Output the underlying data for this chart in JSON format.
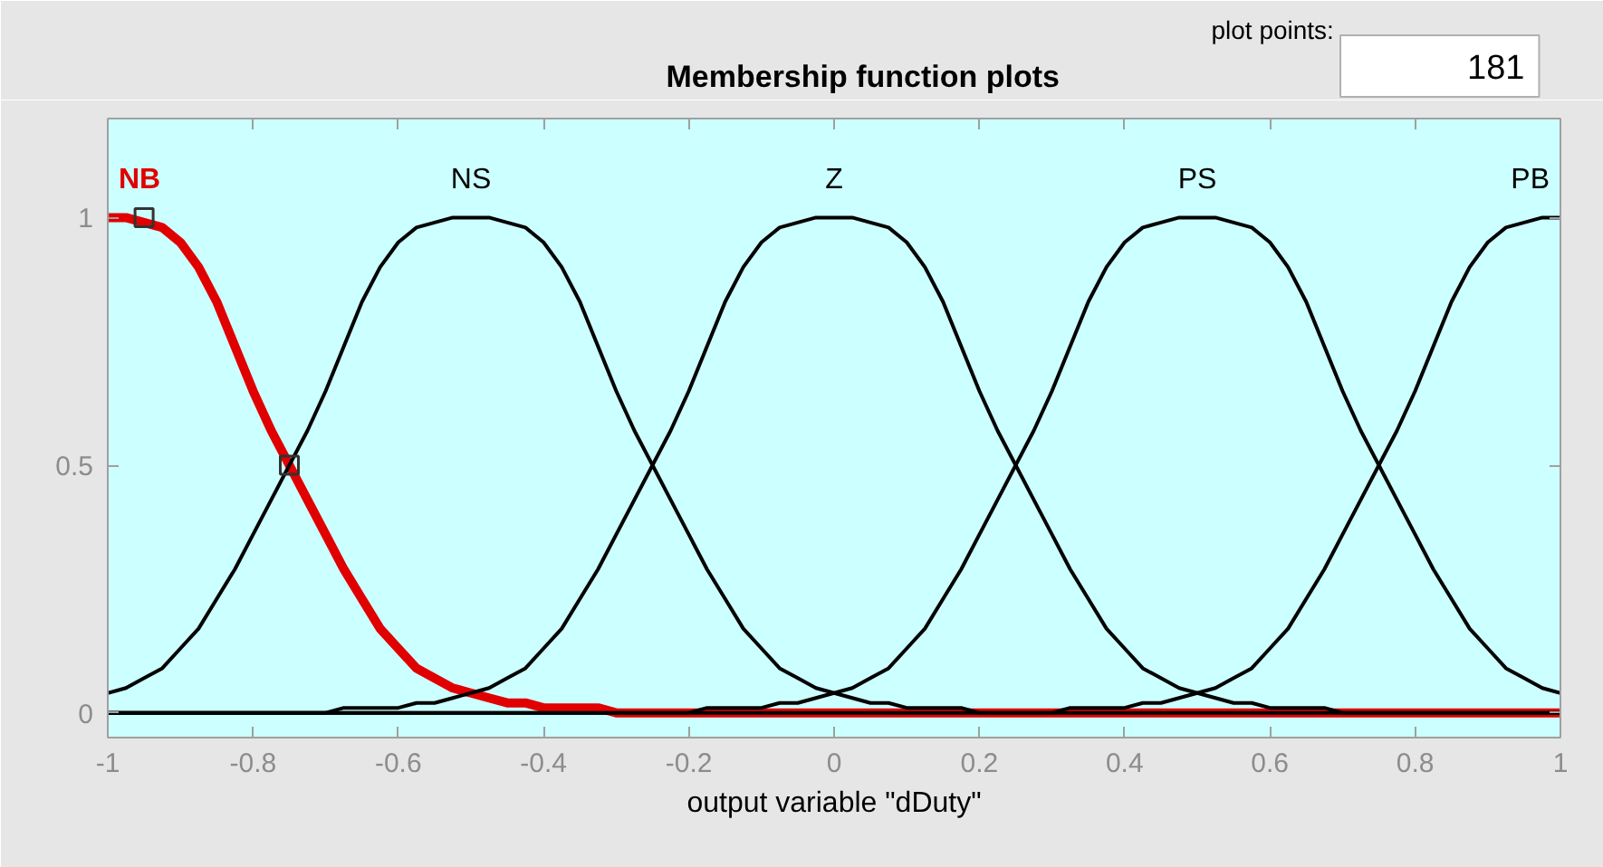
{
  "chart_data": {
    "type": "line",
    "title": "Membership function plots",
    "xlabel": "output variable \"dDuty\"",
    "annotations": [
      "plot points:",
      "181"
    ],
    "x": [
      -1,
      -0.975,
      -0.95,
      -0.925,
      -0.9,
      -0.875,
      -0.85,
      -0.825,
      -0.8,
      -0.775,
      -0.75,
      -0.725,
      -0.7,
      -0.675,
      -0.65,
      -0.625,
      -0.6,
      -0.575,
      -0.55,
      -0.525,
      -0.5,
      -0.475,
      -0.45,
      -0.425,
      -0.4,
      -0.375,
      -0.35,
      -0.325,
      -0.3,
      -0.275,
      -0.25,
      -0.225,
      -0.2,
      -0.175,
      -0.15,
      -0.125,
      -0.1,
      -0.075,
      -0.05,
      -0.025,
      0,
      0.025,
      0.05,
      0.075,
      0.1,
      0.125,
      0.15,
      0.175,
      0.2,
      0.225,
      0.25,
      0.275,
      0.3,
      0.325,
      0.35,
      0.375,
      0.4,
      0.425,
      0.45,
      0.475,
      0.5,
      0.525,
      0.55,
      0.575,
      0.6,
      0.625,
      0.65,
      0.675,
      0.7,
      0.725,
      0.75,
      0.775,
      0.8,
      0.825,
      0.85,
      0.875,
      0.9,
      0.925,
      0.95,
      0.975,
      1
    ],
    "xlim": [
      -1,
      1
    ],
    "ylim": [
      -0.05,
      1.2
    ],
    "xticks": [
      -1,
      -0.8,
      -0.6,
      -0.4,
      -0.2,
      0,
      0.2,
      0.4,
      0.6,
      0.8,
      1
    ],
    "yticks": [
      0,
      0.5,
      1
    ],
    "grid": false,
    "series": [
      {
        "name": "NB",
        "color": "#e00000",
        "values": [
          1,
          1,
          0.99,
          0.98,
          0.95,
          0.9,
          0.83,
          0.74,
          0.65,
          0.57,
          0.5,
          0.43,
          0.36,
          0.29,
          0.23,
          0.17,
          0.13,
          0.09,
          0.07,
          0.05,
          0.04,
          0.03,
          0.02,
          0.02,
          0.01,
          0.01,
          0.01,
          0.01,
          0,
          0,
          0,
          0,
          0,
          0,
          0,
          0,
          0,
          0,
          0,
          0,
          0,
          0,
          0,
          0,
          0,
          0,
          0,
          0,
          0,
          0,
          0,
          0,
          0,
          0,
          0,
          0,
          0,
          0,
          0,
          0,
          0,
          0,
          0,
          0,
          0,
          0,
          0,
          0,
          0,
          0,
          0,
          0,
          0,
          0,
          0,
          0,
          0,
          0,
          0,
          0,
          0
        ]
      },
      {
        "name": "NS",
        "color": "#000000",
        "values": [
          0.04,
          0.05,
          0.07,
          0.09,
          0.13,
          0.17,
          0.23,
          0.29,
          0.36,
          0.43,
          0.5,
          0.57,
          0.65,
          0.74,
          0.83,
          0.9,
          0.95,
          0.98,
          0.99,
          1,
          1,
          1,
          0.99,
          0.98,
          0.95,
          0.9,
          0.83,
          0.74,
          0.65,
          0.57,
          0.5,
          0.43,
          0.36,
          0.29,
          0.23,
          0.17,
          0.13,
          0.09,
          0.07,
          0.05,
          0.04,
          0.03,
          0.02,
          0.02,
          0.01,
          0.01,
          0.01,
          0.01,
          0,
          0,
          0,
          0,
          0,
          0,
          0,
          0,
          0,
          0,
          0,
          0,
          0,
          0,
          0,
          0,
          0,
          0,
          0,
          0,
          0,
          0,
          0,
          0,
          0,
          0,
          0,
          0,
          0,
          0,
          0,
          0,
          0
        ]
      },
      {
        "name": "Z",
        "color": "#000000",
        "values": [
          0,
          0,
          0,
          0,
          0,
          0,
          0,
          0,
          0,
          0,
          0,
          0,
          0,
          0.01,
          0.01,
          0.01,
          0.01,
          0.02,
          0.02,
          0.03,
          0.04,
          0.05,
          0.07,
          0.09,
          0.13,
          0.17,
          0.23,
          0.29,
          0.36,
          0.43,
          0.5,
          0.57,
          0.65,
          0.74,
          0.83,
          0.9,
          0.95,
          0.98,
          0.99,
          1,
          1,
          1,
          0.99,
          0.98,
          0.95,
          0.9,
          0.83,
          0.74,
          0.65,
          0.57,
          0.5,
          0.43,
          0.36,
          0.29,
          0.23,
          0.17,
          0.13,
          0.09,
          0.07,
          0.05,
          0.04,
          0.03,
          0.02,
          0.02,
          0.01,
          0.01,
          0.01,
          0.01,
          0,
          0,
          0,
          0,
          0,
          0,
          0,
          0,
          0,
          0,
          0,
          0,
          0
        ]
      },
      {
        "name": "PS",
        "color": "#000000",
        "values": [
          0,
          0,
          0,
          0,
          0,
          0,
          0,
          0,
          0,
          0,
          0,
          0,
          0,
          0,
          0,
          0,
          0,
          0,
          0,
          0,
          0,
          0,
          0,
          0,
          0,
          0,
          0,
          0,
          0,
          0,
          0,
          0,
          0,
          0.01,
          0.01,
          0.01,
          0.01,
          0.02,
          0.02,
          0.03,
          0.04,
          0.05,
          0.07,
          0.09,
          0.13,
          0.17,
          0.23,
          0.29,
          0.36,
          0.43,
          0.5,
          0.57,
          0.65,
          0.74,
          0.83,
          0.9,
          0.95,
          0.98,
          0.99,
          1,
          1,
          1,
          0.99,
          0.98,
          0.95,
          0.9,
          0.83,
          0.74,
          0.65,
          0.57,
          0.5,
          0.43,
          0.36,
          0.29,
          0.23,
          0.17,
          0.13,
          0.09,
          0.07,
          0.05,
          0.04
        ]
      },
      {
        "name": "PB",
        "color": "#000000",
        "values": [
          0,
          0,
          0,
          0,
          0,
          0,
          0,
          0,
          0,
          0,
          0,
          0,
          0,
          0,
          0,
          0,
          0,
          0,
          0,
          0,
          0,
          0,
          0,
          0,
          0,
          0,
          0,
          0,
          0,
          0,
          0,
          0,
          0,
          0,
          0,
          0,
          0,
          0,
          0,
          0,
          0,
          0,
          0,
          0,
          0,
          0,
          0,
          0,
          0,
          0,
          0,
          0,
          0,
          0.01,
          0.01,
          0.01,
          0.01,
          0.02,
          0.02,
          0.03,
          0.04,
          0.05,
          0.07,
          0.09,
          0.13,
          0.17,
          0.23,
          0.29,
          0.36,
          0.43,
          0.5,
          0.57,
          0.65,
          0.74,
          0.83,
          0.9,
          0.95,
          0.98,
          0.99,
          1,
          1
        ]
      },
      {
        "type": "scatter",
        "x": [
          -0.95,
          -0.75
        ],
        "values": [
          1,
          0.5
        ],
        "color": "#333333",
        "marker": "square"
      }
    ]
  }
}
